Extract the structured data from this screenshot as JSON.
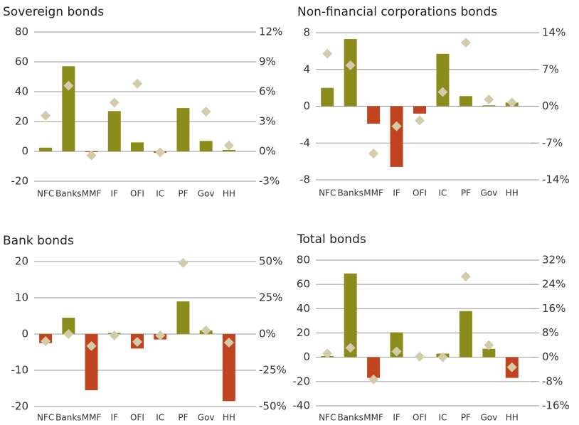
{
  "chart_data": [
    {
      "type": "bar",
      "title": "Sovereign bonds",
      "categories": [
        "NFC",
        "Banks",
        "MMF",
        "IF",
        "OFI",
        "IC",
        "PF",
        "Gov",
        "HH"
      ],
      "series": [
        {
          "color": "#8c8c1c",
          "negative_color": "#c0441f",
          "values": [
            2.5,
            57,
            -0.5,
            27,
            6,
            -1,
            29,
            7,
            1
          ]
        },
        {
          "color": "#d4cbab",
          "marker": "diamond",
          "axis": "y2",
          "values": [
            3.6,
            6.6,
            -0.4,
            4.9,
            6.8,
            -0.1,
            null,
            4.0,
            0.6
          ]
        }
      ],
      "ylim": [
        -20,
        80
      ],
      "yticks": [
        -20,
        0,
        20,
        40,
        60,
        80
      ],
      "y2lim": [
        -3,
        12
      ],
      "y2ticks": [
        {
          "value": -3,
          "label": "-3%"
        },
        {
          "value": 0,
          "label": "0%"
        },
        {
          "value": 3,
          "label": "3%"
        },
        {
          "value": 6,
          "label": "6%"
        },
        {
          "value": 9,
          "label": "9%"
        },
        {
          "value": 12,
          "label": "12%"
        }
      ],
      "grid": true
    },
    {
      "type": "bar",
      "title": "Non-financial corporations bonds",
      "categories": [
        "NFC",
        "Banks",
        "MMF",
        "IF",
        "OFI",
        "IC",
        "PF",
        "Gov",
        "HH"
      ],
      "series": [
        {
          "color": "#8c8c1c",
          "negative_color": "#c0441f",
          "values": [
            2.0,
            7.3,
            -1.9,
            -6.6,
            -0.8,
            5.7,
            1.1,
            0.1,
            0.4
          ]
        },
        {
          "color": "#d4cbab",
          "marker": "diamond",
          "axis": "y2",
          "values": [
            10.0,
            7.8,
            -9.0,
            -3.8,
            -2.7,
            2.7,
            12.1,
            1.3,
            0.7
          ]
        }
      ],
      "ylim": [
        -8,
        8
      ],
      "yticks": [
        -8,
        -4,
        0,
        4,
        8
      ],
      "y2lim": [
        -14,
        14
      ],
      "y2ticks": [
        {
          "value": -14,
          "label": "-14%"
        },
        {
          "value": -7,
          "label": "-7%"
        },
        {
          "value": 0,
          "label": "0%"
        },
        {
          "value": 7,
          "label": "7%"
        },
        {
          "value": 14,
          "label": "14%"
        }
      ],
      "grid": true
    },
    {
      "type": "bar",
      "title": "Bank bonds",
      "categories": [
        "NFC",
        "Banks",
        "MMF",
        "IF",
        "OFI",
        "IC",
        "PF",
        "Gov",
        "HH"
      ],
      "series": [
        {
          "color": "#8c8c1c",
          "negative_color": "#c0441f",
          "values": [
            -2.5,
            4.5,
            -15.5,
            0.3,
            -4,
            -1.5,
            9,
            1,
            -18.5
          ]
        },
        {
          "color": "#d4cbab",
          "marker": "diamond",
          "axis": "y2",
          "values": [
            -4.9,
            0,
            -8.3,
            -1,
            -5.4,
            -1,
            49,
            2.5,
            -5.9
          ]
        }
      ],
      "ylim": [
        -20,
        20
      ],
      "yticks": [
        -20,
        -10,
        0,
        10,
        20
      ],
      "y2lim": [
        -50,
        50
      ],
      "y2ticks": [
        {
          "value": -50,
          "label": "-50%"
        },
        {
          "value": -25,
          "label": "-25%"
        },
        {
          "value": 0,
          "label": "0%"
        },
        {
          "value": 25,
          "label": "25%"
        },
        {
          "value": 50,
          "label": "50%"
        }
      ],
      "grid": true
    },
    {
      "type": "bar",
      "title": "Total bonds",
      "categories": [
        "NFC",
        "Banks",
        "MMF",
        "IF",
        "OFI",
        "IC",
        "PF",
        "Gov",
        "HH"
      ],
      "series": [
        {
          "color": "#8c8c1c",
          "negative_color": "#c0441f",
          "values": [
            1,
            69,
            -17,
            20.5,
            0.3,
            3,
            38,
            7,
            -17
          ]
        },
        {
          "color": "#d4cbab",
          "marker": "diamond",
          "axis": "y2",
          "values": [
            1.2,
            3.1,
            -7.3,
            1.9,
            0.2,
            0,
            26.6,
            4.0,
            -3.3
          ]
        }
      ],
      "ylim": [
        -40,
        80
      ],
      "yticks": [
        -40,
        -20,
        0,
        20,
        40,
        60,
        80
      ],
      "y2lim": [
        -16,
        32
      ],
      "y2ticks": [
        {
          "value": -16,
          "label": "-16%"
        },
        {
          "value": -8,
          "label": "-8%"
        },
        {
          "value": 0,
          "label": "0%"
        },
        {
          "value": 8,
          "label": "8%"
        },
        {
          "value": 16,
          "label": "16%"
        },
        {
          "value": 24,
          "label": "24%"
        },
        {
          "value": 32,
          "label": "32%"
        }
      ],
      "grid": true
    }
  ]
}
